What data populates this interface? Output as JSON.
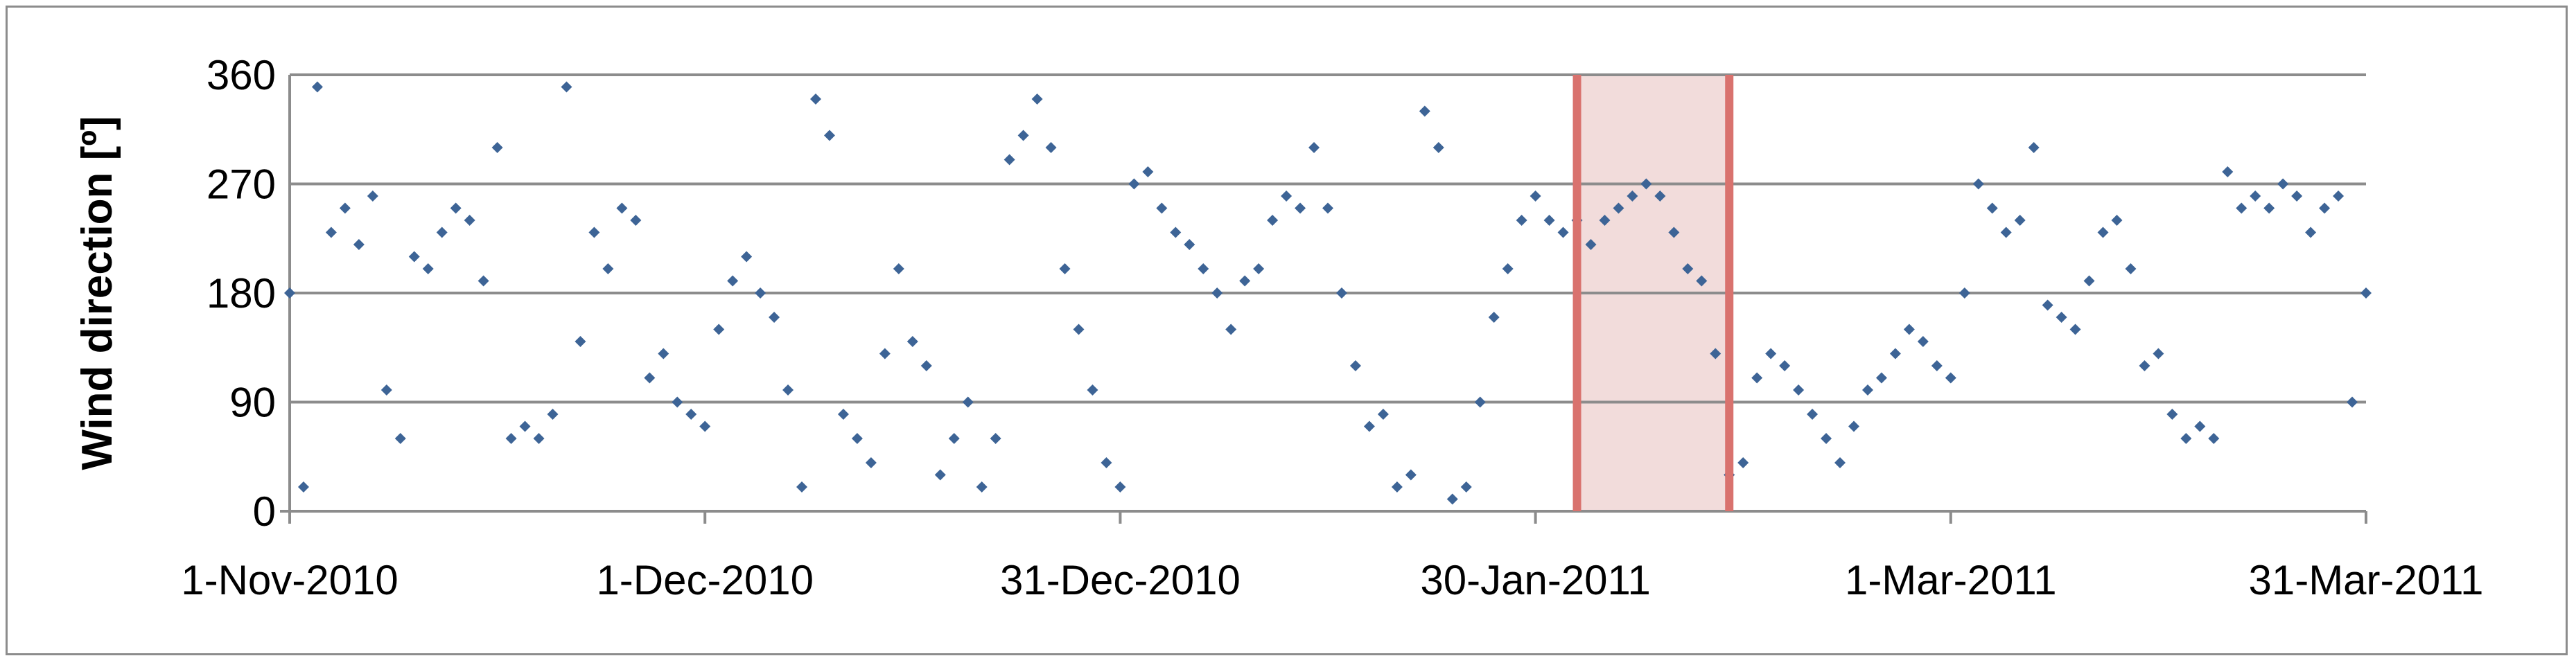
{
  "chart_data": {
    "type": "scatter",
    "title": "",
    "xlabel": "",
    "ylabel": "Wind direction [º]",
    "x_range": [
      "2010-11-01",
      "2011-03-31"
    ],
    "ylim": [
      0,
      360
    ],
    "y_ticks": [
      0,
      90,
      180,
      270,
      360
    ],
    "x_ticks": [
      "1-Nov-2010",
      "1-Dec-2010",
      "31-Dec-2010",
      "30-Jan-2011",
      "1-Mar-2011",
      "31-Mar-2011"
    ],
    "grid": true,
    "legend": "none",
    "marker": "diamond",
    "highlight_period": {
      "start": "2011-02-02",
      "end": "2011-02-13"
    },
    "colors": {
      "points": "#3d6496",
      "highlight_fill": "#f2dcdb",
      "highlight_edge": "#d9726e",
      "grid": "#8c8c8c"
    },
    "series": [
      {
        "x": [
          "2010-11-01",
          "2010-11-02",
          "2010-11-03",
          "2010-11-04",
          "2010-11-05",
          "2010-11-06",
          "2010-11-07",
          "2010-11-08",
          "2010-11-09",
          "2010-11-10",
          "2010-11-11",
          "2010-11-12",
          "2010-11-13",
          "2010-11-14",
          "2010-11-15",
          "2010-11-16",
          "2010-11-17",
          "2010-11-18",
          "2010-11-19",
          "2010-11-20",
          "2010-11-21",
          "2010-11-22",
          "2010-11-23",
          "2010-11-24",
          "2010-11-25",
          "2010-11-26",
          "2010-11-27",
          "2010-11-28",
          "2010-11-29",
          "2010-11-30",
          "2010-12-01",
          "2010-12-02",
          "2010-12-03",
          "2010-12-04",
          "2010-12-05",
          "2010-12-06",
          "2010-12-07",
          "2010-12-08",
          "2010-12-09",
          "2010-12-10",
          "2010-12-11",
          "2010-12-12",
          "2010-12-13",
          "2010-12-14",
          "2010-12-15",
          "2010-12-16",
          "2010-12-17",
          "2010-12-18",
          "2010-12-19",
          "2010-12-20",
          "2010-12-21",
          "2010-12-22",
          "2010-12-23",
          "2010-12-24",
          "2010-12-25",
          "2010-12-26",
          "2010-12-27",
          "2010-12-28",
          "2010-12-29",
          "2010-12-30",
          "2010-12-31",
          "2011-01-01",
          "2011-01-02",
          "2011-01-03",
          "2011-01-04",
          "2011-01-05",
          "2011-01-06",
          "2011-01-07",
          "2011-01-08",
          "2011-01-09",
          "2011-01-10",
          "2011-01-11",
          "2011-01-12",
          "2011-01-13",
          "2011-01-14",
          "2011-01-15",
          "2011-01-16",
          "2011-01-17",
          "2011-01-18",
          "2011-01-19",
          "2011-01-20",
          "2011-01-21",
          "2011-01-22",
          "2011-01-23",
          "2011-01-24",
          "2011-01-25",
          "2011-01-26",
          "2011-01-27",
          "2011-01-28",
          "2011-01-29",
          "2011-01-30",
          "2011-01-31",
          "2011-02-01",
          "2011-02-02",
          "2011-02-03",
          "2011-02-04",
          "2011-02-05",
          "2011-02-06",
          "2011-02-07",
          "2011-02-08",
          "2011-02-09",
          "2011-02-10",
          "2011-02-11",
          "2011-02-12",
          "2011-02-13",
          "2011-02-14",
          "2011-02-15",
          "2011-02-16",
          "2011-02-17",
          "2011-02-18",
          "2011-02-19",
          "2011-02-20",
          "2011-02-21",
          "2011-02-22",
          "2011-02-23",
          "2011-02-24",
          "2011-02-25",
          "2011-02-26",
          "2011-02-27",
          "2011-02-28",
          "2011-03-01",
          "2011-03-02",
          "2011-03-03",
          "2011-03-04",
          "2011-03-05",
          "2011-03-06",
          "2011-03-07",
          "2011-03-08",
          "2011-03-09",
          "2011-03-10",
          "2011-03-11",
          "2011-03-12",
          "2011-03-13",
          "2011-03-14",
          "2011-03-15",
          "2011-03-16",
          "2011-03-17",
          "2011-03-18",
          "2011-03-19",
          "2011-03-20",
          "2011-03-21",
          "2011-03-22",
          "2011-03-23",
          "2011-03-24",
          "2011-03-25",
          "2011-03-26",
          "2011-03-27",
          "2011-03-28",
          "2011-03-29",
          "2011-03-30",
          "2011-03-31"
        ],
        "y": [
          180,
          20,
          350,
          230,
          250,
          220,
          260,
          100,
          60,
          210,
          200,
          230,
          250,
          240,
          190,
          300,
          60,
          70,
          60,
          80,
          350,
          140,
          230,
          200,
          250,
          240,
          110,
          130,
          90,
          80,
          70,
          150,
          190,
          210,
          180,
          160,
          100,
          20,
          340,
          310,
          80,
          60,
          40,
          130,
          200,
          140,
          120,
          30,
          60,
          90,
          20,
          60,
          290,
          310,
          340,
          300,
          200,
          150,
          100,
          40,
          20,
          270,
          280,
          250,
          230,
          220,
          200,
          180,
          150,
          190,
          200,
          240,
          260,
          250,
          300,
          250,
          180,
          120,
          70,
          80,
          20,
          30,
          330,
          300,
          10,
          20,
          90,
          160,
          200,
          240,
          260,
          240,
          230,
          240,
          220,
          240,
          250,
          260,
          270,
          260,
          230,
          200,
          190,
          130,
          30,
          40,
          110,
          130,
          120,
          100,
          80,
          60,
          40,
          70,
          100,
          110,
          130,
          150,
          140,
          120,
          110,
          180,
          270,
          250,
          230,
          240,
          300,
          170,
          160,
          150,
          190,
          230,
          240,
          200,
          120,
          130,
          80,
          60,
          70,
          60,
          280,
          250,
          260,
          250,
          270,
          260,
          230,
          250,
          260,
          90,
          180
        ]
      }
    ]
  }
}
